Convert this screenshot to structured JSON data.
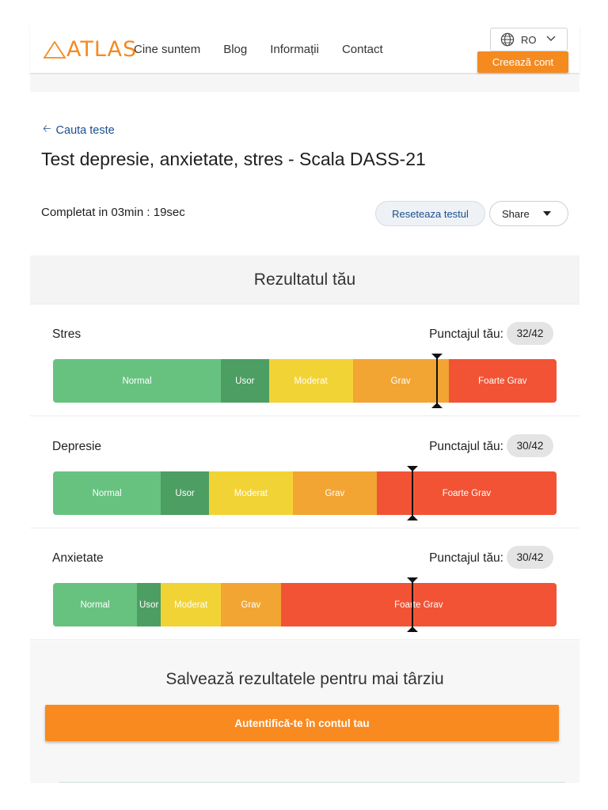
{
  "header": {
    "logo_text": "ATLAS",
    "nav": [
      "Cine suntem",
      "Blog",
      "Informații",
      "Contact"
    ],
    "language": "RO",
    "create_account": "Creează cont"
  },
  "page": {
    "back_link": "Cauta teste",
    "title": "Test depresie, anxietate, stres - Scala DASS-21",
    "completed": "Completat in 03min : 19sec",
    "reset_button": "Reseteaza testul",
    "share_button": "Share"
  },
  "results": {
    "heading": "Rezultatul tău",
    "score_label": "Punctajul tău:",
    "colors": {
      "normal": "#67c27f",
      "usor": "#4d9e63",
      "moderat": "#f2d335",
      "grav": "#f2a533",
      "foarte_grav": "#f25335"
    },
    "scales": [
      {
        "name": "Stres",
        "score": "32/42",
        "score_value": 32,
        "max": 42,
        "segments": [
          {
            "label": "Normal",
            "key": "normal",
            "from": 0,
            "to": 14
          },
          {
            "label": "Usor",
            "key": "usor",
            "from": 14,
            "to": 18
          },
          {
            "label": "Moderat",
            "key": "moderat",
            "from": 18,
            "to": 25
          },
          {
            "label": "Grav",
            "key": "grav",
            "from": 25,
            "to": 33
          },
          {
            "label": "Foarte Grav",
            "key": "foarte_grav",
            "from": 33,
            "to": 42
          }
        ]
      },
      {
        "name": "Depresie",
        "score": "30/42",
        "score_value": 30,
        "max": 42,
        "segments": [
          {
            "label": "Normal",
            "key": "normal",
            "from": 0,
            "to": 9
          },
          {
            "label": "Usor",
            "key": "usor",
            "from": 9,
            "to": 13
          },
          {
            "label": "Moderat",
            "key": "moderat",
            "from": 13,
            "to": 20
          },
          {
            "label": "Grav",
            "key": "grav",
            "from": 20,
            "to": 27
          },
          {
            "label": "Foarte Grav",
            "key": "foarte_grav",
            "from": 27,
            "to": 42
          }
        ]
      },
      {
        "name": "Anxietate",
        "score": "30/42",
        "score_value": 30,
        "max": 42,
        "segments": [
          {
            "label": "Normal",
            "key": "normal",
            "from": 0,
            "to": 7
          },
          {
            "label": "Usor",
            "key": "usor",
            "from": 7,
            "to": 9
          },
          {
            "label": "Moderat",
            "key": "moderat",
            "from": 9,
            "to": 14
          },
          {
            "label": "Grav",
            "key": "grav",
            "from": 14,
            "to": 19
          },
          {
            "label": "Foarte Grav",
            "key": "foarte_grav",
            "from": 19,
            "to": 42
          }
        ]
      }
    ]
  },
  "save": {
    "heading": "Salvează rezultatele pentru mai târziu",
    "login_button": "Autentifică-te în contul tau"
  }
}
